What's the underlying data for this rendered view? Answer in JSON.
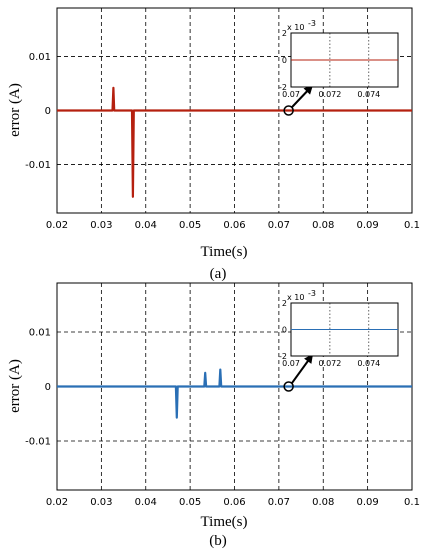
{
  "chart_data": [
    {
      "type": "line",
      "caption": "(a)",
      "xlabel": "Time(s)",
      "ylabel": "error (A)",
      "xlim": [
        0.02,
        0.1
      ],
      "ylim": [
        -0.019,
        0.019
      ],
      "x_ticks": [
        "0.02",
        "0.03",
        "0.04",
        "0.05",
        "0.06",
        "0.07",
        "0.08",
        "0.09",
        "0.1"
      ],
      "y_ticks": [
        "0.01",
        "0",
        "-0.01"
      ],
      "grid": true,
      "color": "#b5200f",
      "series": [
        {
          "x": [
            0.02,
            0.0325,
            0.0327,
            0.0329,
            0.0369,
            0.0371,
            0.0373,
            0.1
          ],
          "y": [
            0,
            0,
            0.0042,
            0,
            0,
            -0.016,
            0,
            0
          ]
        }
      ],
      "inset": {
        "exponent_label": "x 10",
        "exponent": "-3",
        "xlim": [
          0.07,
          0.0755
        ],
        "ylim": [
          -2,
          2
        ],
        "x_ticks": [
          "0.07",
          "0.072",
          "0.074"
        ],
        "y_ticks": [
          "2",
          "0",
          "-2"
        ],
        "x": [
          0.07,
          0.0755
        ],
        "y": [
          0,
          0
        ],
        "zoom_point": [
          0.0722,
          0
        ]
      }
    },
    {
      "type": "line",
      "caption": "(b)",
      "xlabel": "Time(s)",
      "ylabel": "error (A)",
      "xlim": [
        0.02,
        0.1
      ],
      "ylim": [
        -0.019,
        0.019
      ],
      "x_ticks": [
        "0.02",
        "0.03",
        "0.04",
        "0.05",
        "0.06",
        "0.07",
        "0.08",
        "0.09",
        "0.1"
      ],
      "y_ticks": [
        "0.01",
        "0",
        "-0.01"
      ],
      "grid": true,
      "color": "#2a6fb5",
      "series": [
        {
          "x": [
            0.02,
            0.0468,
            0.047,
            0.0472,
            0.0532,
            0.0534,
            0.0536,
            0.0566,
            0.0568,
            0.057,
            0.1
          ],
          "y": [
            0,
            0,
            -0.0057,
            0,
            0,
            0.0025,
            0,
            0,
            0.0031,
            0,
            0
          ]
        }
      ],
      "inset": {
        "exponent_label": "x 10",
        "exponent": "-3",
        "xlim": [
          0.07,
          0.0755
        ],
        "ylim": [
          -2,
          2
        ],
        "x_ticks": [
          "0.07",
          "0.072",
          "0.074"
        ],
        "y_ticks": [
          "2",
          "0",
          "-2"
        ],
        "x": [
          0.07,
          0.0755
        ],
        "y": [
          0,
          0
        ],
        "zoom_point": [
          0.0722,
          0
        ]
      }
    }
  ]
}
